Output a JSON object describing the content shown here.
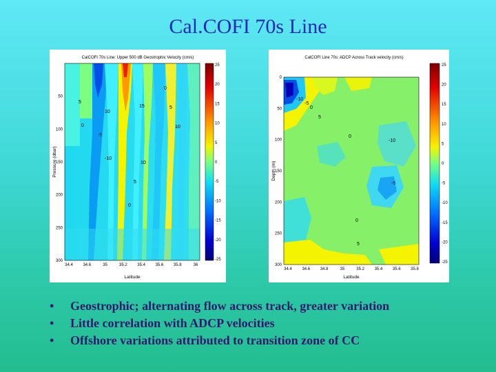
{
  "slide": {
    "title": "Cal.COFI 70s Line",
    "bullets": [
      "Geostrophic; alternating flow across track, greater variation",
      "Little correlation with ADCP velocities",
      "Offshore variations attributed to transition zone of CC"
    ],
    "bullet_symbol": "•"
  },
  "chart_data": [
    {
      "type": "heatmap",
      "title": "CalCOFI 70s Line: Upper 500 dB Geostrophic Velocity (cm/s)",
      "xlabel": "Latitude",
      "ylabel": "Pressure (dbar)",
      "xticks": [
        "34.4",
        "34.6",
        "35",
        "35.2",
        "35.4",
        "35.6",
        "35.8",
        "36"
      ],
      "yticks": [
        "50",
        "100",
        "150",
        "200",
        "250",
        "300"
      ],
      "ylim": [
        0,
        300
      ],
      "colorbar": {
        "min": -25,
        "max": 25,
        "ticks": [
          "25",
          "20",
          "15",
          "10",
          "5",
          "0",
          "-5",
          "-10",
          "-15",
          "-20",
          "-25"
        ]
      },
      "contour_labels": [
        "5",
        "10",
        "15",
        "0",
        "5",
        "10",
        "-5",
        "0",
        "10",
        "-10",
        "5",
        "0"
      ]
    },
    {
      "type": "heatmap",
      "title": "CalCOFI Line 70s: ADCP Across Track velocity (cm/s)",
      "xlabel": "Latitude",
      "ylabel": "Depth (m)",
      "xticks": [
        "34.4",
        "34.6",
        "34.8",
        "35",
        "35.2",
        "35.4",
        "35.6",
        "35.8"
      ],
      "yticks": [
        "0",
        "50",
        "100",
        "150",
        "200",
        "250",
        "300"
      ],
      "ylim": [
        0,
        300
      ],
      "colorbar": {
        "min": -25,
        "max": 25,
        "ticks": [
          "25",
          "20",
          "15",
          "10",
          "5",
          "0",
          "-5",
          "-10",
          "-15",
          "-20",
          "-25"
        ]
      },
      "contour_labels": [
        "-10",
        "-5",
        "0",
        "5",
        "0",
        "-10",
        "-5",
        "0",
        "5"
      ]
    }
  ],
  "colors": {
    "title": "#1f2bb8",
    "bullet_text": "#2b1a6d",
    "background_top": "#5fe8f6",
    "background_bottom": "#23bd8f"
  }
}
